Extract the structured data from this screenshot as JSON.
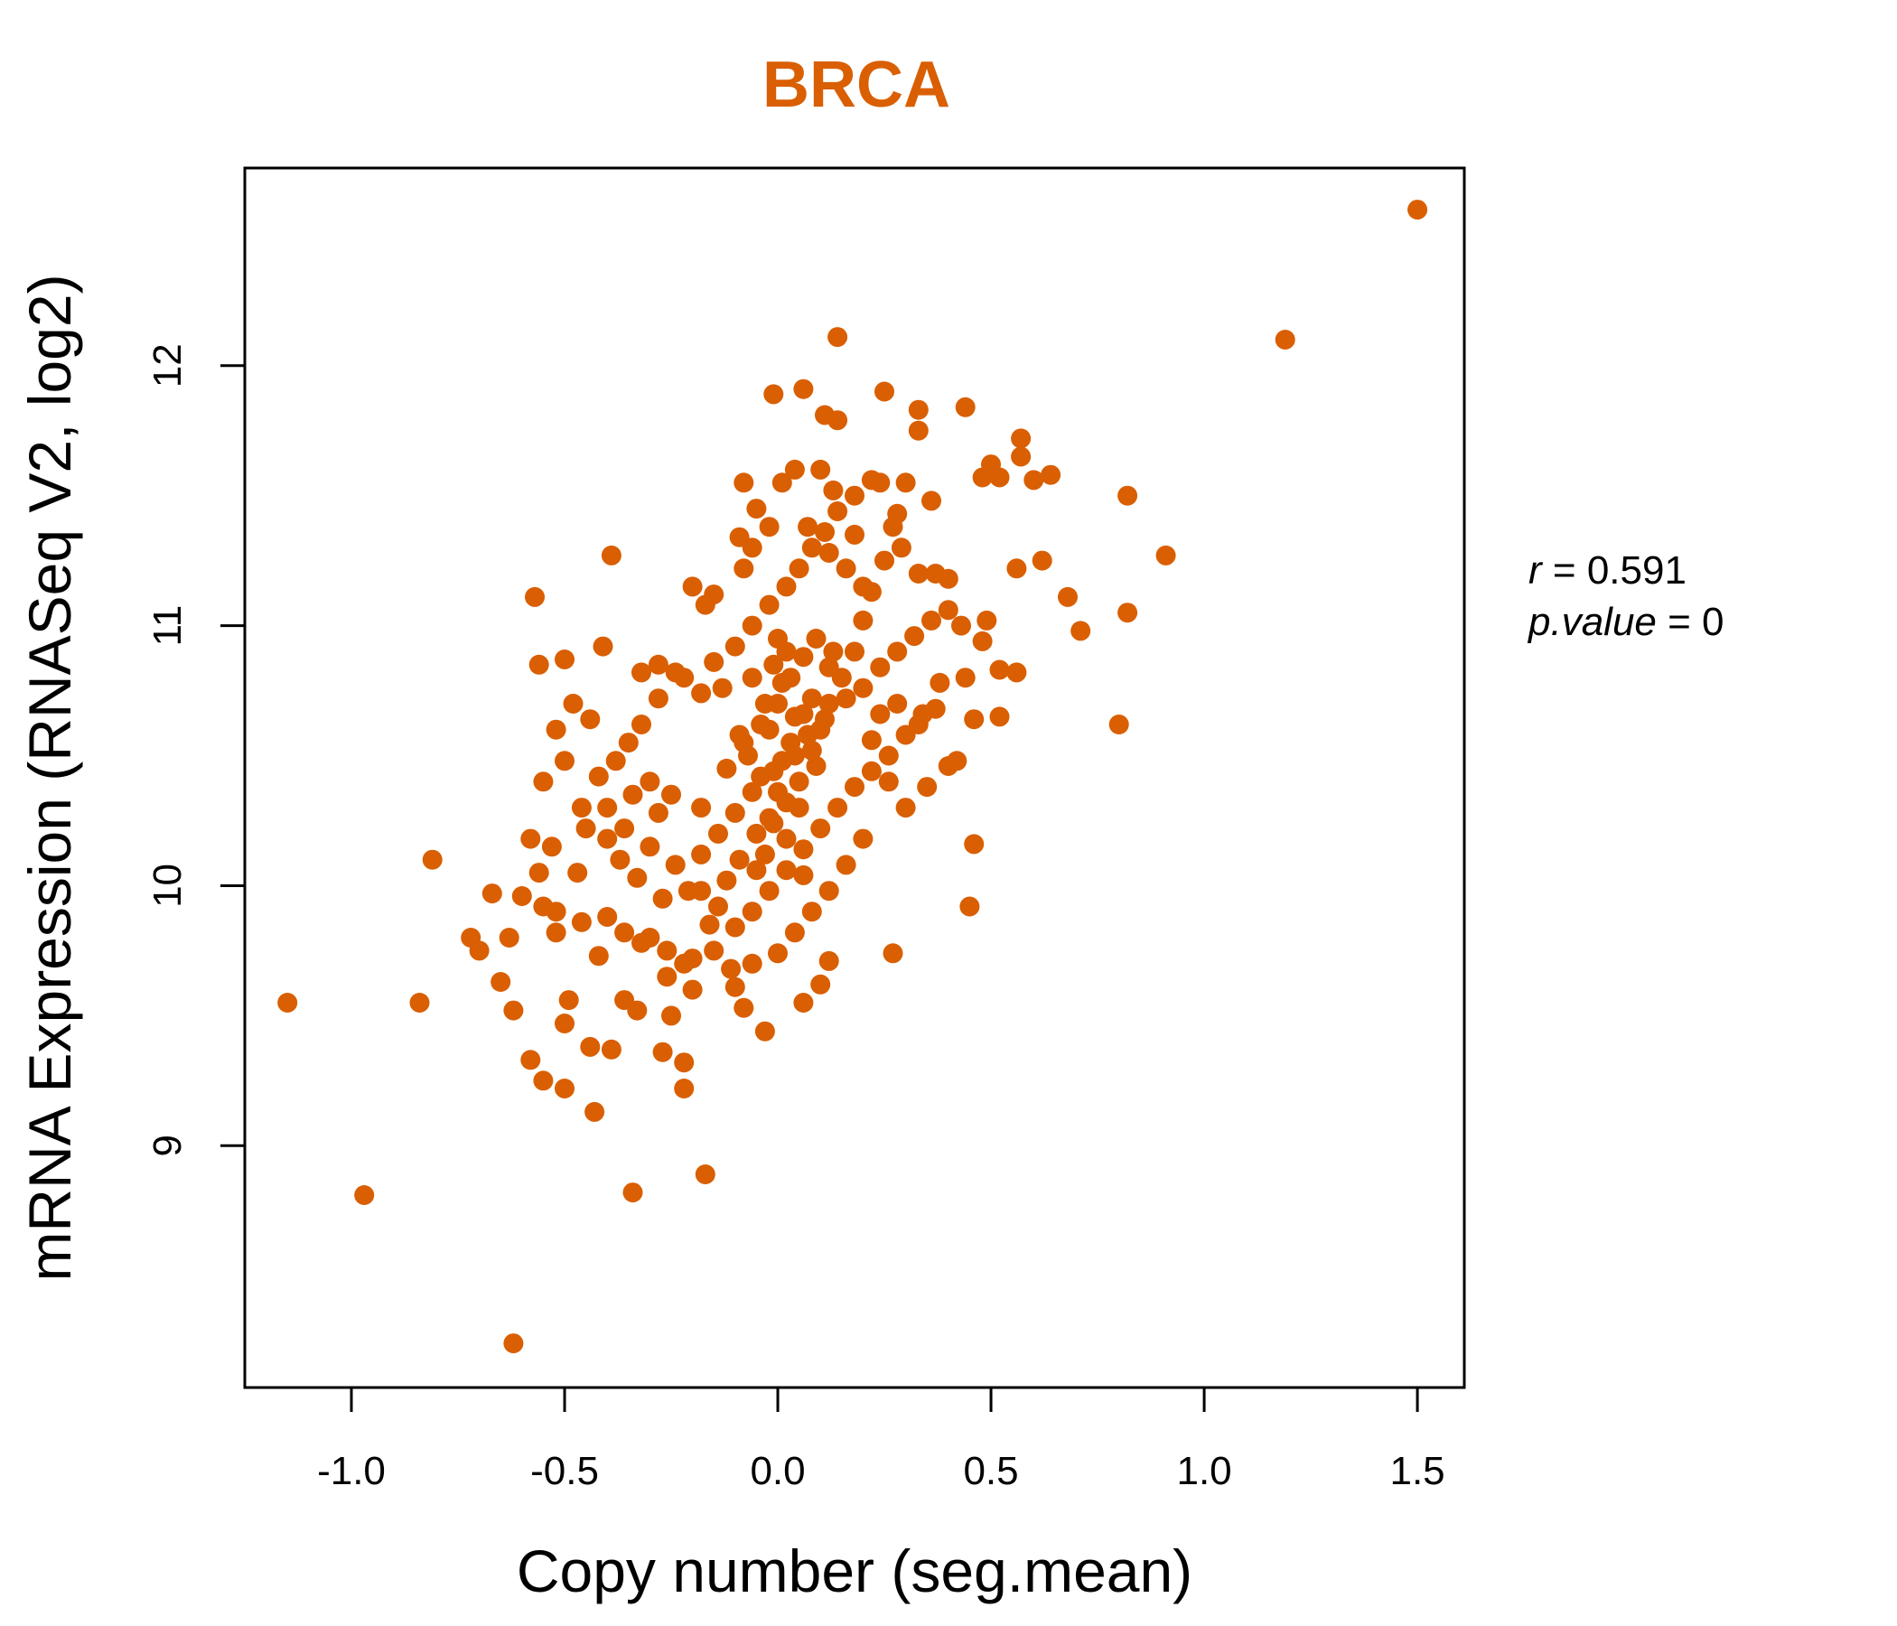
{
  "chart_data": {
    "type": "scatter",
    "title": "BRCA",
    "xlabel": "Copy number (seg.mean)",
    "ylabel": "mRNA Expression (RNASeq V2, log2)",
    "xlim": [
      -1.25,
      1.61
    ],
    "ylim": [
      8.07,
      12.76
    ],
    "x_ticks": [
      -1.0,
      -0.5,
      0.0,
      0.5,
      1.0,
      1.5
    ],
    "x_tick_labels": [
      "-1.0",
      "-0.5",
      "0.0",
      "0.5",
      "1.0",
      "1.5"
    ],
    "y_ticks": [
      9,
      10,
      11,
      12
    ],
    "y_tick_labels": [
      "9",
      "10",
      "11",
      "12"
    ],
    "stats": {
      "r_label": "r",
      "r_value": "0.591",
      "p_label": "p.value",
      "p_value": "0"
    },
    "color": "#D95F02",
    "grid": false,
    "points": [
      [
        1.5,
        12.6
      ],
      [
        1.19,
        12.1
      ],
      [
        0.14,
        12.11
      ],
      [
        0.91,
        11.27
      ],
      [
        0.82,
        11.5
      ],
      [
        0.82,
        11.05
      ],
      [
        0.8,
        10.62
      ],
      [
        0.71,
        10.98
      ],
      [
        0.68,
        11.11
      ],
      [
        0.62,
        11.25
      ],
      [
        0.64,
        11.58
      ],
      [
        0.6,
        11.56
      ],
      [
        0.57,
        11.72
      ],
      [
        0.57,
        11.65
      ],
      [
        0.56,
        11.22
      ],
      [
        0.56,
        10.82
      ],
      [
        0.52,
        10.83
      ],
      [
        0.52,
        10.65
      ],
      [
        0.49,
        11.02
      ],
      [
        0.46,
        10.64
      ],
      [
        0.46,
        10.16
      ],
      [
        0.45,
        9.92
      ],
      [
        0.44,
        11.84
      ],
      [
        0.33,
        11.83
      ],
      [
        0.33,
        11.75
      ],
      [
        0.25,
        11.9
      ],
      [
        0.06,
        11.91
      ],
      [
        -0.01,
        11.89
      ],
      [
        0.11,
        11.81
      ],
      [
        0.14,
        11.79
      ],
      [
        -0.39,
        11.27
      ],
      [
        -0.57,
        11.11
      ],
      [
        -0.56,
        10.85
      ],
      [
        -0.5,
        10.87
      ],
      [
        -0.41,
        10.92
      ],
      [
        -0.81,
        10.1
      ],
      [
        -0.67,
        9.97
      ],
      [
        -0.72,
        9.8
      ],
      [
        -0.7,
        9.75
      ],
      [
        -1.15,
        9.55
      ],
      [
        -0.84,
        9.55
      ],
      [
        -0.97,
        8.81
      ],
      [
        -0.62,
        8.24
      ],
      [
        -0.34,
        8.82
      ],
      [
        -0.17,
        8.89
      ],
      [
        -0.63,
        9.8
      ],
      [
        -0.65,
        9.63
      ],
      [
        -0.62,
        9.52
      ],
      [
        -0.58,
        9.33
      ],
      [
        -0.55,
        9.25
      ],
      [
        -0.5,
        9.22
      ],
      [
        -0.43,
        9.13
      ],
      [
        -0.22,
        9.22
      ],
      [
        -0.22,
        9.32
      ],
      [
        -0.27,
        9.36
      ],
      [
        -0.49,
        9.56
      ],
      [
        -0.5,
        9.47
      ],
      [
        -0.44,
        9.38
      ],
      [
        -0.39,
        9.37
      ],
      [
        -0.36,
        9.56
      ],
      [
        -0.33,
        9.52
      ],
      [
        -0.25,
        9.5
      ],
      [
        -0.08,
        9.53
      ],
      [
        -0.03,
        9.44
      ],
      [
        0.1,
        9.62
      ],
      [
        0.06,
        9.55
      ],
      [
        0.27,
        9.74
      ],
      [
        0.12,
        9.71
      ],
      [
        -0.1,
        9.61
      ],
      [
        0.0,
        9.74
      ],
      [
        -0.16,
        9.85
      ],
      [
        -0.2,
        9.72
      ],
      [
        -0.3,
        9.8
      ],
      [
        -0.42,
        9.73
      ],
      [
        -0.52,
        9.82
      ],
      [
        -0.55,
        9.92
      ],
      [
        -0.47,
        10.05
      ],
      [
        -0.53,
        10.15
      ],
      [
        -0.45,
        10.22
      ],
      [
        -0.4,
        10.18
      ],
      [
        -0.37,
        10.1
      ],
      [
        -0.33,
        10.03
      ],
      [
        -0.27,
        9.95
      ],
      [
        -0.21,
        9.98
      ],
      [
        -0.12,
        10.02
      ],
      [
        -0.09,
        10.1
      ],
      [
        -0.05,
        10.2
      ],
      [
        -0.02,
        10.26
      ],
      [
        0.02,
        10.32
      ],
      [
        0.05,
        10.4
      ],
      [
        0.08,
        10.52
      ],
      [
        0.1,
        10.6
      ],
      [
        0.12,
        10.7
      ],
      [
        0.15,
        10.8
      ],
      [
        0.18,
        10.9
      ],
      [
        0.2,
        11.02
      ],
      [
        0.22,
        11.13
      ],
      [
        0.25,
        11.25
      ],
      [
        0.27,
        11.38
      ],
      [
        0.3,
        11.55
      ],
      [
        -0.3,
        10.4
      ],
      [
        -0.25,
        10.35
      ],
      [
        -0.18,
        10.3
      ],
      [
        -0.12,
        10.45
      ],
      [
        -0.08,
        10.55
      ],
      [
        -0.04,
        10.62
      ],
      [
        0.0,
        10.7
      ],
      [
        0.03,
        10.8
      ],
      [
        0.06,
        10.88
      ],
      [
        0.09,
        10.95
      ],
      [
        -0.35,
        10.55
      ],
      [
        -0.32,
        10.62
      ],
      [
        -0.28,
        10.72
      ],
      [
        -0.22,
        10.8
      ],
      [
        -0.15,
        10.86
      ],
      [
        -0.1,
        10.92
      ],
      [
        -0.06,
        11.0
      ],
      [
        -0.02,
        11.08
      ],
      [
        0.02,
        11.15
      ],
      [
        0.05,
        11.22
      ],
      [
        0.08,
        11.3
      ],
      [
        0.11,
        11.36
      ],
      [
        0.14,
        11.44
      ],
      [
        0.18,
        11.5
      ],
      [
        0.22,
        11.56
      ],
      [
        -0.4,
        10.3
      ],
      [
        -0.36,
        10.22
      ],
      [
        -0.3,
        10.15
      ],
      [
        -0.24,
        10.08
      ],
      [
        -0.18,
        10.12
      ],
      [
        -0.14,
        10.2
      ],
      [
        -0.1,
        10.28
      ],
      [
        -0.06,
        10.36
      ],
      [
        -0.01,
        10.44
      ],
      [
        0.04,
        10.5
      ],
      [
        0.07,
        10.58
      ],
      [
        0.11,
        10.64
      ],
      [
        0.16,
        10.72
      ],
      [
        0.2,
        10.76
      ],
      [
        0.24,
        10.84
      ],
      [
        0.28,
        10.9
      ],
      [
        0.32,
        10.96
      ],
      [
        0.36,
        11.02
      ],
      [
        0.4,
        11.06
      ],
      [
        0.43,
        11.0
      ],
      [
        0.38,
        10.78
      ],
      [
        0.34,
        10.66
      ],
      [
        0.3,
        10.58
      ],
      [
        0.26,
        10.5
      ],
      [
        0.22,
        10.44
      ],
      [
        0.18,
        10.38
      ],
      [
        0.14,
        10.3
      ],
      [
        0.1,
        10.22
      ],
      [
        0.06,
        10.14
      ],
      [
        0.02,
        10.06
      ],
      [
        -0.02,
        9.98
      ],
      [
        -0.06,
        9.9
      ],
      [
        -0.1,
        9.84
      ],
      [
        -0.14,
        9.92
      ],
      [
        -0.18,
        9.98
      ],
      [
        0.35,
        10.38
      ],
      [
        0.4,
        10.46
      ],
      [
        0.42,
        10.48
      ],
      [
        0.3,
        10.3
      ],
      [
        0.26,
        10.4
      ],
      [
        0.2,
        10.18
      ],
      [
        0.16,
        10.08
      ],
      [
        0.12,
        9.98
      ],
      [
        0.08,
        9.9
      ],
      [
        0.04,
        9.82
      ],
      [
        -0.48,
        10.7
      ],
      [
        -0.44,
        10.64
      ],
      [
        -0.52,
        10.6
      ],
      [
        -0.55,
        10.4
      ],
      [
        -0.5,
        10.48
      ],
      [
        -0.42,
        10.42
      ],
      [
        -0.46,
        10.3
      ],
      [
        -0.38,
        10.48
      ],
      [
        -0.34,
        10.35
      ],
      [
        -0.28,
        10.28
      ],
      [
        -0.58,
        10.18
      ],
      [
        -0.56,
        10.05
      ],
      [
        -0.6,
        9.96
      ],
      [
        -0.52,
        9.9
      ],
      [
        -0.46,
        9.86
      ],
      [
        -0.4,
        9.88
      ],
      [
        -0.36,
        9.82
      ],
      [
        -0.32,
        9.78
      ],
      [
        -0.26,
        9.75
      ],
      [
        -0.22,
        9.7
      ],
      [
        -0.15,
        9.75
      ],
      [
        -0.11,
        9.68
      ],
      [
        -0.06,
        9.7
      ],
      [
        -0.26,
        9.65
      ],
      [
        -0.2,
        9.6
      ],
      [
        -0.08,
        11.55
      ],
      [
        -0.05,
        11.45
      ],
      [
        -0.02,
        11.38
      ],
      [
        0.01,
        11.55
      ],
      [
        0.04,
        11.6
      ],
      [
        0.1,
        11.6
      ],
      [
        0.13,
        11.52
      ],
      [
        0.18,
        11.35
      ],
      [
        0.24,
        11.55
      ],
      [
        0.28,
        11.43
      ],
      [
        0.29,
        11.3
      ],
      [
        0.33,
        11.2
      ],
      [
        0.37,
        11.2
      ],
      [
        0.48,
        11.57
      ],
      [
        0.52,
        11.57
      ],
      [
        0.5,
        11.62
      ],
      [
        0.36,
        11.48
      ],
      [
        0.4,
        11.18
      ],
      [
        0.48,
        10.94
      ],
      [
        0.44,
        10.8
      ],
      [
        0.37,
        10.68
      ],
      [
        0.33,
        10.62
      ],
      [
        0.28,
        10.7
      ],
      [
        0.24,
        10.66
      ],
      [
        0.22,
        10.56
      ],
      [
        -0.2,
        11.15
      ],
      [
        -0.17,
        11.08
      ],
      [
        -0.15,
        11.12
      ],
      [
        -0.08,
        11.22
      ],
      [
        -0.06,
        11.3
      ],
      [
        -0.09,
        11.34
      ],
      [
        0.07,
        11.38
      ],
      [
        0.12,
        11.28
      ],
      [
        0.16,
        11.22
      ],
      [
        0.2,
        11.15
      ],
      [
        -0.32,
        10.82
      ],
      [
        -0.28,
        10.85
      ],
      [
        -0.24,
        10.82
      ],
      [
        -0.18,
        10.74
      ],
      [
        -0.13,
        10.76
      ],
      [
        0.0,
        10.95
      ],
      [
        0.02,
        10.9
      ],
      [
        -0.01,
        10.85
      ],
      [
        0.01,
        10.78
      ],
      [
        -0.03,
        10.7
      ],
      [
        0.04,
        10.65
      ],
      [
        -0.02,
        10.6
      ],
      [
        0.03,
        10.55
      ],
      [
        0.01,
        10.48
      ],
      [
        -0.04,
        10.42
      ],
      [
        0.0,
        10.36
      ],
      [
        0.05,
        10.3
      ],
      [
        -0.01,
        10.24
      ],
      [
        0.02,
        10.18
      ],
      [
        -0.03,
        10.12
      ],
      [
        0.06,
        10.04
      ],
      [
        -0.05,
        10.06
      ],
      [
        0.08,
        10.72
      ],
      [
        0.06,
        10.66
      ],
      [
        0.09,
        10.46
      ],
      [
        -0.07,
        10.5
      ],
      [
        -0.09,
        10.58
      ],
      [
        0.12,
        10.84
      ],
      [
        0.13,
        10.9
      ],
      [
        -0.06,
        10.8
      ]
    ]
  }
}
